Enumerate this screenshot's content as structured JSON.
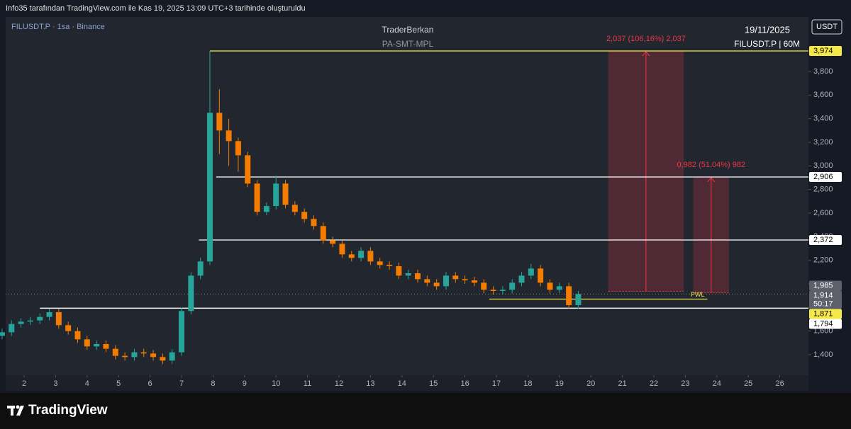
{
  "header": {
    "caption": "Info35 tarafından TradingView.com ile Kas 19, 2025 13:09 UTC+3 tarihinde oluşturuldu"
  },
  "chart_data": {
    "type": "candlestick",
    "symbol": "FILUSDT.P · 1sa · Binance",
    "watermark": [
      "TraderBerkan",
      "PA-SMT-MPL"
    ],
    "date_note": "19/11/2025",
    "timeframe_note": "FILUSDT.P | 60M",
    "currency": "USDT",
    "x": [
      1.3,
      1.6,
      1.9,
      2.2,
      2.5,
      2.8,
      3.1,
      3.4,
      3.7,
      4.0,
      4.3,
      4.6,
      4.9,
      5.2,
      5.5,
      5.8,
      6.1,
      6.4,
      6.7,
      7.0,
      7.3,
      7.6,
      7.9,
      8.2,
      8.5,
      8.8,
      9.1,
      9.4,
      9.7,
      10.0,
      10.3,
      10.6,
      10.9,
      11.2,
      11.5,
      11.8,
      12.1,
      12.4,
      12.7,
      13.0,
      13.3,
      13.6,
      13.9,
      14.2,
      14.5,
      14.8,
      15.1,
      15.4,
      15.7,
      16.0,
      16.3,
      16.6,
      16.9,
      17.2,
      17.5,
      17.8,
      18.1,
      18.4,
      18.7,
      19.0,
      19.3,
      19.6
    ],
    "open": [
      1.56,
      1.59,
      1.66,
      1.68,
      1.69,
      1.72,
      1.76,
      1.65,
      1.6,
      1.53,
      1.47,
      1.49,
      1.45,
      1.39,
      1.38,
      1.42,
      1.41,
      1.38,
      1.35,
      1.42,
      1.77,
      2.07,
      2.19,
      3.45,
      3.3,
      3.21,
      3.09,
      2.85,
      2.61,
      2.66,
      2.85,
      2.67,
      2.61,
      2.55,
      2.49,
      2.37,
      2.34,
      2.25,
      2.22,
      2.28,
      2.19,
      2.16,
      2.15,
      2.07,
      2.09,
      2.04,
      2.01,
      1.98,
      2.07,
      2.04,
      2.03,
      2.01,
      1.95,
      1.94,
      1.95,
      2.01,
      2.07,
      2.13,
      2.01,
      1.95,
      1.98,
      1.82
    ],
    "high": [
      1.62,
      1.69,
      1.71,
      1.72,
      1.75,
      1.79,
      1.79,
      1.68,
      1.63,
      1.56,
      1.52,
      1.52,
      1.48,
      1.42,
      1.45,
      1.45,
      1.44,
      1.41,
      1.45,
      1.8,
      2.1,
      2.22,
      3.974,
      3.65,
      3.4,
      3.24,
      3.12,
      2.88,
      2.69,
      2.92,
      2.88,
      2.7,
      2.64,
      2.58,
      2.52,
      2.4,
      2.37,
      2.28,
      2.31,
      2.31,
      2.22,
      2.19,
      2.18,
      2.12,
      2.12,
      2.07,
      2.04,
      2.1,
      2.1,
      2.07,
      2.06,
      2.04,
      1.98,
      1.98,
      2.04,
      2.1,
      2.17,
      2.16,
      2.04,
      2.01,
      2.01,
      1.94
    ],
    "low": [
      1.53,
      1.56,
      1.63,
      1.65,
      1.66,
      1.69,
      1.62,
      1.57,
      1.5,
      1.44,
      1.44,
      1.42,
      1.36,
      1.35,
      1.35,
      1.38,
      1.35,
      1.32,
      1.32,
      1.39,
      1.74,
      2.04,
      2.16,
      3.1,
      3.0,
      2.95,
      2.82,
      2.58,
      2.58,
      2.63,
      2.64,
      2.58,
      2.52,
      2.46,
      2.34,
      2.31,
      2.22,
      2.19,
      2.19,
      2.16,
      2.13,
      2.12,
      2.04,
      2.04,
      2.01,
      1.98,
      1.95,
      1.95,
      2.01,
      2.0,
      1.98,
      1.92,
      1.91,
      1.91,
      1.92,
      1.98,
      2.04,
      1.98,
      1.92,
      1.92,
      1.79,
      1.79
    ],
    "close": [
      1.59,
      1.66,
      1.68,
      1.69,
      1.72,
      1.76,
      1.65,
      1.6,
      1.53,
      1.47,
      1.49,
      1.45,
      1.39,
      1.38,
      1.42,
      1.41,
      1.38,
      1.35,
      1.42,
      1.77,
      2.07,
      2.19,
      3.45,
      3.3,
      3.21,
      3.09,
      2.85,
      2.61,
      2.66,
      2.85,
      2.67,
      2.61,
      2.55,
      2.49,
      2.37,
      2.34,
      2.25,
      2.22,
      2.28,
      2.19,
      2.16,
      2.15,
      2.07,
      2.09,
      2.04,
      2.01,
      1.98,
      2.07,
      2.04,
      2.03,
      2.01,
      1.95,
      1.94,
      1.95,
      2.01,
      2.07,
      2.13,
      2.01,
      1.95,
      1.98,
      1.82,
      1.914
    ],
    "up_color": "#26a69a",
    "down_color": "#f57c00",
    "xlim": [
      1.414,
      26.91
    ],
    "ylim": [
      1.226,
      4.262
    ],
    "xticks": [
      2,
      3,
      4,
      5,
      6,
      7,
      8,
      9,
      10,
      11,
      12,
      13,
      14,
      15,
      16,
      17,
      18,
      19,
      20,
      21,
      22,
      23,
      24,
      25,
      26
    ],
    "yticks": [
      {
        "value": 1.4,
        "label": "1,400"
      },
      {
        "value": 1.6,
        "label": "1,600"
      },
      {
        "value": 1.8,
        "label": "1,800"
      },
      {
        "value": 2.0,
        "label": "2,000"
      },
      {
        "value": 2.2,
        "label": "2,200"
      },
      {
        "value": 2.4,
        "label": "2,400"
      },
      {
        "value": 2.6,
        "label": "2,600"
      },
      {
        "value": 2.8,
        "label": "2,800"
      },
      {
        "value": 3.0,
        "label": "3,000"
      },
      {
        "value": 3.2,
        "label": "3,200"
      },
      {
        "value": 3.4,
        "label": "3,400"
      },
      {
        "value": 3.6,
        "label": "3,600"
      },
      {
        "value": 3.8,
        "label": "3,800"
      }
    ],
    "levels": [
      {
        "value": 3.974,
        "label": "3,974",
        "color": "#f5e94a",
        "x_start": 7.9
      },
      {
        "value": 2.906,
        "label": "2,906",
        "color": "#ffffff",
        "x_start": 8.1
      },
      {
        "value": 2.372,
        "label": "2,372",
        "color": "#ffffff",
        "x_start": 7.55
      },
      {
        "value": 1.794,
        "label": "1,794",
        "color": "#ffffff",
        "x_start": 2.5
      },
      {
        "value": 1.871,
        "label": "1,871",
        "color": "#f5e94a",
        "x_start": 16.77,
        "x_end": 23.7,
        "tag": "PWL"
      }
    ],
    "markers": [
      {
        "value": 1.985,
        "label": "1,985"
      }
    ],
    "last_price": {
      "value": 1.914,
      "label": "1,914",
      "countdown": "50:17"
    },
    "measurements": [
      {
        "x_range": [
          20.55,
          22.95
        ],
        "from": 1.937,
        "to": 3.974,
        "label": "2,037 (106,16%) 2,037"
      },
      {
        "x_range": [
          23.25,
          24.39
        ],
        "from": 1.924,
        "to": 2.906,
        "label": "0,982 (51,04%) 982"
      }
    ]
  },
  "footer": {
    "brand": "TradingView"
  }
}
